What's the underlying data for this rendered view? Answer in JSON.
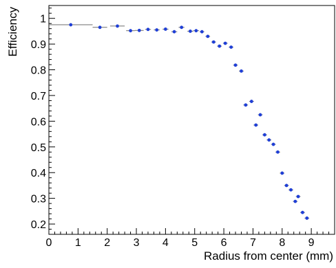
{
  "chart_data": {
    "type": "scatter",
    "title": "",
    "xlabel": "Radius from center (mm)",
    "ylabel": "Efficiency",
    "xlim": [
      0,
      9.8
    ],
    "ylim": [
      0.16,
      1.05
    ],
    "x_ticks": [
      0,
      1,
      2,
      3,
      4,
      5,
      6,
      7,
      8,
      9
    ],
    "y_ticks": [
      0.2,
      0.3,
      0.4,
      0.5,
      0.6,
      0.7,
      0.8,
      0.9,
      1
    ],
    "grid": false,
    "legend": "none",
    "marker_color": "#1f3fd6",
    "errorbar_color": "#6b6b6b",
    "points": [
      {
        "x": 0.75,
        "y": 0.975,
        "xerr": 0.75,
        "yerr": 0.003
      },
      {
        "x": 1.75,
        "y": 0.965,
        "xerr": 0.25,
        "yerr": 0.003
      },
      {
        "x": 2.35,
        "y": 0.97,
        "xerr": 0.25,
        "yerr": 0.003
      },
      {
        "x": 2.8,
        "y": 0.952,
        "xerr": 0.15,
        "yerr": 0.003
      },
      {
        "x": 3.1,
        "y": 0.953,
        "xerr": 0.15,
        "yerr": 0.003
      },
      {
        "x": 3.4,
        "y": 0.957,
        "xerr": 0.1,
        "yerr": 0.003
      },
      {
        "x": 3.7,
        "y": 0.955,
        "xerr": 0.1,
        "yerr": 0.003
      },
      {
        "x": 4.0,
        "y": 0.958,
        "xerr": 0.1,
        "yerr": 0.003
      },
      {
        "x": 4.3,
        "y": 0.948,
        "xerr": 0.1,
        "yerr": 0.003
      },
      {
        "x": 4.55,
        "y": 0.965,
        "xerr": 0.1,
        "yerr": 0.004
      },
      {
        "x": 4.85,
        "y": 0.95,
        "xerr": 0.1,
        "yerr": 0.004
      },
      {
        "x": 5.05,
        "y": 0.952,
        "xerr": 0.1,
        "yerr": 0.004
      },
      {
        "x": 5.25,
        "y": 0.948,
        "xerr": 0.08,
        "yerr": 0.004
      },
      {
        "x": 5.45,
        "y": 0.93,
        "xerr": 0.08,
        "yerr": 0.004
      },
      {
        "x": 5.65,
        "y": 0.908,
        "xerr": 0.08,
        "yerr": 0.004
      },
      {
        "x": 5.85,
        "y": 0.892,
        "xerr": 0.08,
        "yerr": 0.004
      },
      {
        "x": 6.05,
        "y": 0.903,
        "xerr": 0.08,
        "yerr": 0.004
      },
      {
        "x": 6.25,
        "y": 0.888,
        "xerr": 0.08,
        "yerr": 0.004
      },
      {
        "x": 6.4,
        "y": 0.818,
        "xerr": 0.08,
        "yerr": 0.005
      },
      {
        "x": 6.6,
        "y": 0.795,
        "xerr": 0.08,
        "yerr": 0.005
      },
      {
        "x": 6.75,
        "y": 0.663,
        "xerr": 0.08,
        "yerr": 0.006
      },
      {
        "x": 6.95,
        "y": 0.677,
        "xerr": 0.08,
        "yerr": 0.006
      },
      {
        "x": 7.1,
        "y": 0.585,
        "xerr": 0.08,
        "yerr": 0.006
      },
      {
        "x": 7.25,
        "y": 0.625,
        "xerr": 0.08,
        "yerr": 0.006
      },
      {
        "x": 7.4,
        "y": 0.547,
        "xerr": 0.08,
        "yerr": 0.006
      },
      {
        "x": 7.55,
        "y": 0.527,
        "xerr": 0.08,
        "yerr": 0.006
      },
      {
        "x": 7.7,
        "y": 0.51,
        "xerr": 0.08,
        "yerr": 0.006
      },
      {
        "x": 7.85,
        "y": 0.48,
        "xerr": 0.08,
        "yerr": 0.006
      },
      {
        "x": 8.0,
        "y": 0.398,
        "xerr": 0.08,
        "yerr": 0.006
      },
      {
        "x": 8.15,
        "y": 0.35,
        "xerr": 0.08,
        "yerr": 0.006
      },
      {
        "x": 8.3,
        "y": 0.333,
        "xerr": 0.08,
        "yerr": 0.006
      },
      {
        "x": 8.45,
        "y": 0.288,
        "xerr": 0.08,
        "yerr": 0.006
      },
      {
        "x": 8.55,
        "y": 0.307,
        "xerr": 0.08,
        "yerr": 0.006
      },
      {
        "x": 8.7,
        "y": 0.245,
        "xerr": 0.08,
        "yerr": 0.006
      },
      {
        "x": 8.85,
        "y": 0.223,
        "xerr": 0.08,
        "yerr": 0.006
      }
    ]
  }
}
